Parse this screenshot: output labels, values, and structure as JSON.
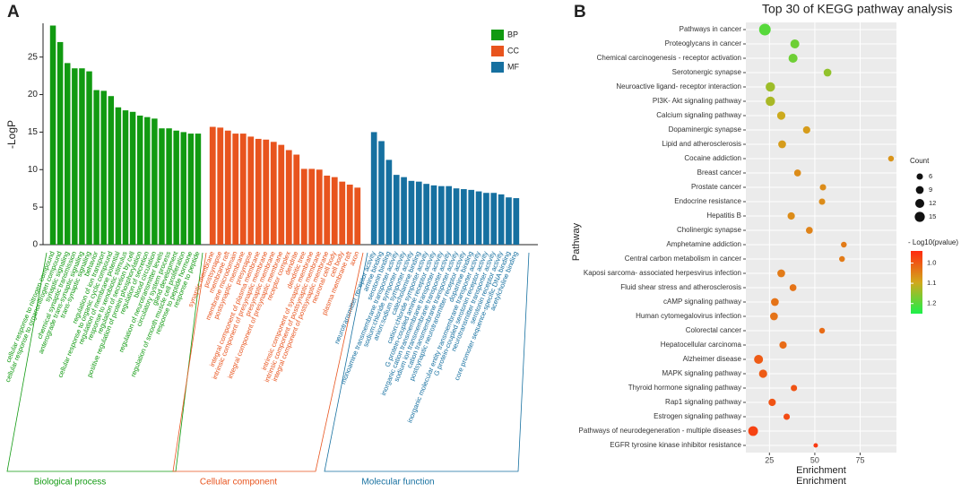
{
  "chart_data": [
    {
      "type": "bar",
      "panel_label": "A",
      "y_label": "-LogP",
      "ylim": [
        0,
        29.5
      ],
      "yticks": [
        0,
        5,
        10,
        15,
        20,
        25
      ],
      "series": [
        {
          "name": "BP",
          "group": "Biological process",
          "color": "#119a11",
          "categories": [
            "cellular response to nitrogen compound",
            "cellular response to organonitrogen compound",
            "synaptic signaling",
            "chemical synaptic transmission",
            "anterograde trans-synaptic signaling",
            "trans-synaptic signaling",
            "behavior",
            "regulation of ion transport",
            "cellular response to organic cyclic compound",
            "regulation of membrane potential",
            "response to xenobiotic stimulus",
            "regulation of secretion by cell",
            "positive regulation of protein phosphorylation",
            "regulation of secretion",
            "blood circulation",
            "regulation of neurotransmitter levels",
            "circulatory system process",
            "gland development",
            "regulation of smooth muscle cell proliferation",
            "response to peptide hormone",
            "response to peptide"
          ],
          "values": [
            29.2,
            27.0,
            24.2,
            23.5,
            23.5,
            23.1,
            20.6,
            20.5,
            19.8,
            18.3,
            17.9,
            17.7,
            17.2,
            17.0,
            16.8,
            15.5,
            15.5,
            15.2,
            15.0,
            14.8,
            14.8
          ]
        },
        {
          "name": "CC",
          "group": "Cellular component",
          "color": "#e8541e",
          "categories": [
            "synaptic membrane",
            "postsynapse",
            "membrane raft",
            "membrane microdomain",
            "postsynaptic membrane",
            "presynapse",
            "integral component of plasma membrane",
            "intrinsic component of presynaptic membrane",
            "presynaptic membrane",
            "integral component of presynaptic membrane",
            "receptor complex",
            "dendrite",
            "dendritic tree",
            "intrinsic component of synaptic membrane",
            "intrinsic component of postsynaptic membrane",
            "integral component of postsynaptic membrane",
            "neuronal cell body",
            "cell body",
            "plasma membrane raft",
            "axon"
          ],
          "values": [
            15.7,
            15.6,
            15.2,
            14.8,
            14.8,
            14.4,
            14.1,
            14.0,
            13.7,
            13.3,
            12.6,
            12.0,
            10.1,
            10.1,
            10.0,
            9.2,
            9.0,
            8.4,
            8.0,
            7.6
          ]
        },
        {
          "name": "MF",
          "group": "Molecular function",
          "color": "#1670a0",
          "categories": [
            "neurotransmitter receptor activity",
            "amine binding",
            "serotonin binding",
            "monoamine transmembrane transporter activity",
            "sodium:chloride symporter activity",
            "anion:sodium symporter activity",
            "catecholamine binding",
            "cation:chloride symporter activity",
            "G protein-coupled amine receptor activity",
            "inorganic cation transmembrane transporter activity",
            "sodium ion transmembrane transporter activity",
            "cation transmembrane transporter activity",
            "postsynaptic neurotransmitter receptor activity",
            "dopamine binding",
            "inorganic molecular entity transmembrane transporter activity",
            "G protein-coupled serotonin receptor activity",
            "neurotransmitter transporter activity",
            "serotonin receptor activity",
            "core promoter sequence-specific DNA binding",
            "acetylcholine binding"
          ],
          "values": [
            15.0,
            13.8,
            11.3,
            9.3,
            9.0,
            8.5,
            8.4,
            8.1,
            7.9,
            7.8,
            7.8,
            7.5,
            7.4,
            7.3,
            7.1,
            6.9,
            6.9,
            6.7,
            6.3,
            6.2
          ]
        }
      ]
    },
    {
      "type": "dot",
      "panel_label": "B",
      "title": "Top 30 of KEGG pathway analysis",
      "y_label": "Pathway",
      "x_label": [
        "Enrichment",
        "Enrichment"
      ],
      "xlim": [
        12,
        95
      ],
      "xticks": [
        25,
        50,
        75
      ],
      "categories": [
        "Pathways in cancer",
        "Proteoglycans in cancer",
        "Chemical carcinogenesis -  receptor activation",
        "Serotonergic synapse",
        "Neuroactive ligand- receptor interaction",
        "PI3K- Akt signaling pathway",
        "Calcium signaling pathway",
        "Dopaminergic synapse",
        "Lipid and atherosclerosis",
        "Cocaine addiction",
        "Breast cancer",
        "Prostate cancer",
        "Endocrine resistance",
        "Hepatitis B",
        "Cholinergic synapse",
        "Amphetamine addiction",
        "Central carbon metabolism in cancer",
        "Kaposi sarcoma- associated herpesvirus infection",
        "Fluid shear stress and atherosclerosis",
        "cAMP signaling pathway",
        "Human cytomegalovirus infection",
        "Colorectal cancer",
        "Hepatocellular carcinoma",
        "Alzheimer disease",
        "MAPK signaling pathway",
        "Thyroid hormone signaling pathway",
        "Rap1 signaling pathway",
        "Estrogen signaling pathway",
        "Pathways of neurodegeneration -  multiple diseases",
        "EGFR tyrosine kinase inhibitor resistance"
      ],
      "values": [
        22.5,
        39,
        38,
        57,
        25.5,
        25.5,
        31.5,
        45.5,
        32,
        92,
        40.5,
        54.5,
        54,
        37,
        47,
        66,
        65,
        31.5,
        38,
        28,
        27.5,
        54,
        32.5,
        19,
        21.5,
        38.5,
        26.5,
        34.5,
        16,
        50.5
      ],
      "sizes": [
        20,
        12,
        12,
        9,
        13,
        13,
        10,
        8,
        9,
        5,
        7,
        6,
        6,
        8,
        7,
        5,
        5,
        9,
        7,
        9,
        9,
        5,
        8,
        12,
        10,
        6,
        8,
        6,
        14,
        3
      ],
      "color_values": [
        1.2,
        1.18,
        1.18,
        1.15,
        1.14,
        1.13,
        1.1,
        1.08,
        1.08,
        1.07,
        1.06,
        1.06,
        1.06,
        1.06,
        1.05,
        1.04,
        1.04,
        1.04,
        1.03,
        1.03,
        1.03,
        1.02,
        1.02,
        1.0,
        1.0,
        0.99,
        0.99,
        0.98,
        0.97,
        0.96
      ],
      "size_title": "Count",
      "size_ticks": [
        6,
        9,
        12,
        15
      ],
      "color_title": "- Log10(pvalue)",
      "clim": [
        0.94,
        1.25
      ],
      "colors": [
        "#ff2a10",
        "#d2a81c",
        "#1cf04a"
      ],
      "color_ticks": [
        {
          "value": 1,
          "label": "1.0"
        },
        1.1,
        1.2
      ]
    }
  ]
}
